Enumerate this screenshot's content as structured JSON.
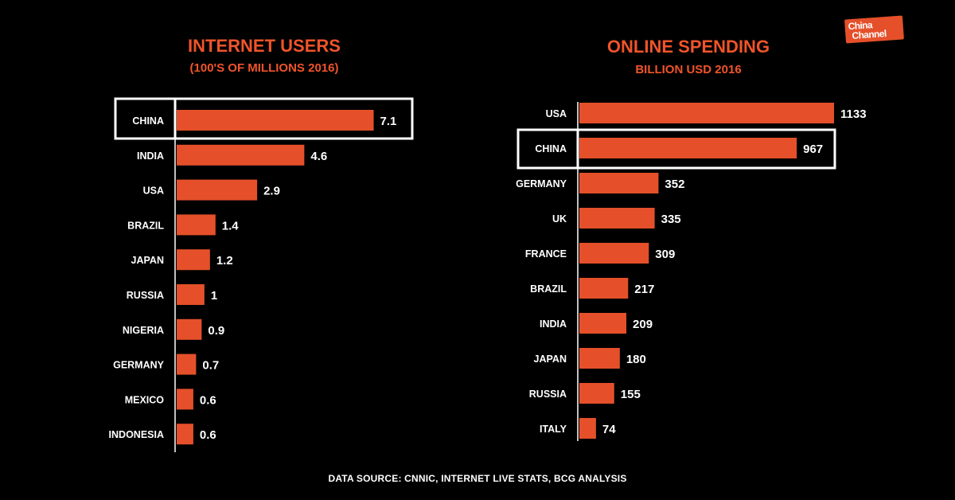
{
  "brand": {
    "logo_line1": "China",
    "logo_line2": "Channel",
    "color": "#e5502a"
  },
  "colors": {
    "bar": "#e5502a",
    "background": "#000000",
    "text": "#ffffff",
    "title": "#f0542a"
  },
  "chart_data": [
    {
      "type": "bar",
      "orientation": "horizontal",
      "title": "INTERNET USERS",
      "subtitle": "(100'S OF MILLIONS 2016)",
      "categories": [
        "CHINA",
        "INDIA",
        "USA",
        "BRAZIL",
        "JAPAN",
        "RUSSIA",
        "NIGERIA",
        "GERMANY",
        "MEXICO",
        "INDONESIA"
      ],
      "values": [
        7.1,
        4.6,
        2.9,
        1.4,
        1.2,
        1,
        0.9,
        0.7,
        0.6,
        0.6
      ],
      "value_labels": [
        "7.1",
        "4.6",
        "2.9",
        "1.4",
        "1.2",
        "1",
        "0.9",
        "0.7",
        "0.6",
        "0.6"
      ],
      "highlight": "CHINA",
      "xlim": [
        0,
        7.4
      ],
      "grid": false
    },
    {
      "type": "bar",
      "orientation": "horizontal",
      "title": "ONLINE SPENDING",
      "subtitle": "BILLION USD 2016",
      "categories": [
        "USA",
        "CHINA",
        "GERMANY",
        "UK",
        "FRANCE",
        "BRAZIL",
        "INDIA",
        "JAPAN",
        "RUSSIA",
        "ITALY"
      ],
      "values": [
        1133,
        967,
        352,
        335,
        309,
        217,
        209,
        180,
        155,
        74
      ],
      "value_labels": [
        "1133",
        "967",
        "352",
        "335",
        "309",
        "217",
        "209",
        "180",
        "155",
        "74"
      ],
      "highlight": "CHINA",
      "xlim": [
        0,
        1140
      ],
      "grid": false
    }
  ],
  "footer": {
    "source": "DATA SOURCE: CNNIC, INTERNET LIVE STATS, BCG ANALYSIS"
  }
}
